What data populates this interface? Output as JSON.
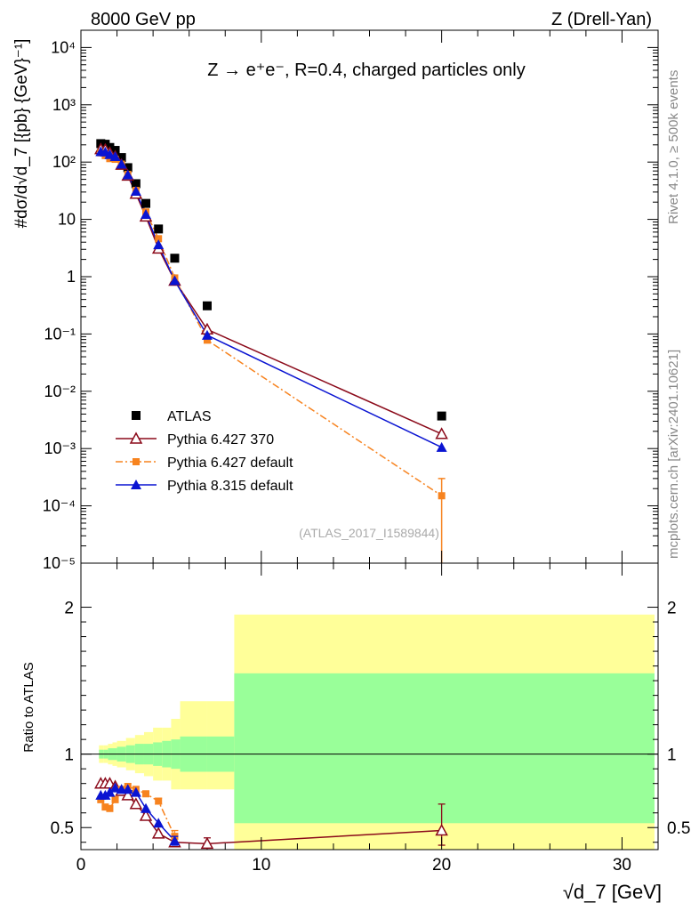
{
  "header": {
    "left_title": "8000 GeV pp",
    "right_title": "Z (Drell-Yan)"
  },
  "side_labels": {
    "rivet": "Rivet 4.1.0, ≥ 500k events",
    "mcplots": "mcplots.cern.ch [arXiv:2401.10621]"
  },
  "chart_data": [
    {
      "type": "scatter",
      "title": "Z → e⁺e⁻, R=0.4, charged particles only",
      "analysis_tag": "(ATLAS_2017_I1589844)",
      "ylabel": "#dσ/d√d_7 [{pb} {GeV}⁻¹]",
      "yscale": "log",
      "ylim": [
        1e-05,
        20000.0
      ],
      "xlim": [
        0,
        32
      ],
      "ytick_labels": [
        "10⁻⁵",
        "10⁻⁴",
        "10⁻³",
        "10⁻²",
        "10⁻¹",
        "1",
        "10",
        "10²",
        "10³",
        "10⁴"
      ],
      "legend_position": "bottom-left",
      "series": [
        {
          "name": "ATLAS",
          "color": "#000000",
          "marker": "square",
          "x": [
            1.1,
            1.35,
            1.6,
            1.9,
            2.25,
            2.6,
            3.05,
            3.6,
            4.3,
            5.2,
            7.0,
            20.0
          ],
          "y": [
            210,
            205,
            180,
            160,
            120,
            80,
            42,
            19,
            6.8,
            2.1,
            0.31,
            0.0037
          ]
        },
        {
          "name": "Pythia 6.427 370",
          "color": "#8b0a1a",
          "marker": "open-triangle",
          "line": "solid",
          "x": [
            1.1,
            1.35,
            1.6,
            1.9,
            2.25,
            2.6,
            3.05,
            3.6,
            4.3,
            5.2,
            7.0,
            20.0
          ],
          "y": [
            168,
            165,
            145,
            125,
            90,
            58,
            28,
            11.2,
            3.1,
            0.85,
            0.12,
            0.0018
          ]
        },
        {
          "name": "Pythia 6.427 default",
          "color": "#f7831f",
          "marker": "square-small",
          "line": "dashdot",
          "x": [
            1.1,
            1.35,
            1.6,
            1.9,
            2.25,
            2.6,
            3.05,
            3.6,
            4.3,
            5.2,
            7.0,
            20.0
          ],
          "y": [
            145,
            130,
            115,
            112,
            92,
            61,
            32,
            13.5,
            4.6,
            0.95,
            0.078,
            0.00015
          ]
        },
        {
          "name": "Pythia 8.315 default",
          "color": "#0a14d2",
          "marker": "filled-triangle",
          "line": "solid",
          "x": [
            1.1,
            1.35,
            1.6,
            1.9,
            2.25,
            2.6,
            3.05,
            3.6,
            4.3,
            5.2,
            7.0,
            20.0
          ],
          "y": [
            152,
            150,
            135,
            125,
            92,
            60,
            31,
            12.2,
            3.6,
            0.85,
            0.095,
            0.00105
          ]
        }
      ]
    },
    {
      "type": "scatter",
      "ylabel": "Ratio to ATLAS",
      "xlabel": "√d_7 [GeV]",
      "xlim": [
        0,
        32
      ],
      "ylim": [
        0.35,
        2.3
      ],
      "xtick_labels": [
        "0",
        "10",
        "20",
        "30"
      ],
      "ytick_labels": [
        "0.5",
        "1",
        "2"
      ],
      "reference_line": 1,
      "bands": {
        "edges": [
          1.0,
          1.25,
          1.5,
          1.75,
          2.0,
          2.5,
          3.0,
          3.5,
          4.0,
          4.5,
          5.0,
          5.5,
          7.0,
          8.5,
          31.8
        ],
        "inner_low": [
          0.97,
          0.97,
          0.96,
          0.96,
          0.95,
          0.94,
          0.93,
          0.93,
          0.92,
          0.91,
          0.9,
          0.88,
          0.88,
          0.53
        ],
        "inner_high": [
          1.03,
          1.03,
          1.04,
          1.04,
          1.05,
          1.06,
          1.07,
          1.07,
          1.08,
          1.09,
          1.1,
          1.12,
          1.12,
          1.55
        ],
        "outer_low": [
          0.94,
          0.94,
          0.93,
          0.92,
          0.91,
          0.89,
          0.87,
          0.85,
          0.82,
          0.82,
          0.76,
          0.76,
          0.76,
          0.35
        ],
        "outer_high": [
          1.06,
          1.06,
          1.07,
          1.08,
          1.09,
          1.11,
          1.13,
          1.15,
          1.18,
          1.18,
          1.24,
          1.36,
          1.36,
          1.95
        ],
        "inner_color": "#99ff99",
        "outer_color": "#ffff99"
      },
      "series": [
        {
          "name": "Pythia 6.427 370",
          "color": "#8b0a1a",
          "marker": "open-triangle",
          "line": "solid",
          "x": [
            1.1,
            1.35,
            1.6,
            1.9,
            2.25,
            2.6,
            3.05,
            3.6,
            4.3,
            5.2,
            7.0,
            20.0
          ],
          "y": [
            0.8,
            0.8,
            0.8,
            0.78,
            0.75,
            0.72,
            0.66,
            0.58,
            0.46,
            0.4,
            0.39,
            0.48
          ],
          "err_low": [
            0,
            0,
            0,
            0,
            0,
            0,
            0,
            0,
            0,
            0,
            0.04,
            0.1
          ],
          "err_high": [
            0,
            0,
            0,
            0,
            0,
            0,
            0,
            0,
            0,
            0,
            0.04,
            0.18
          ]
        },
        {
          "name": "Pythia 6.427 default",
          "color": "#f7831f",
          "marker": "square-small",
          "line": "dashdot",
          "x": [
            1.1,
            1.35,
            1.6,
            1.9,
            2.25,
            2.6,
            3.05,
            3.6,
            4.3,
            5.2
          ],
          "y": [
            0.69,
            0.64,
            0.63,
            0.69,
            0.76,
            0.78,
            0.76,
            0.73,
            0.68,
            0.44
          ],
          "err_low": [
            0,
            0,
            0,
            0,
            0,
            0,
            0,
            0,
            0.02,
            0.04
          ],
          "err_high": [
            0,
            0,
            0,
            0,
            0,
            0,
            0,
            0,
            0.02,
            0.04
          ]
        },
        {
          "name": "Pythia 8.315 default",
          "color": "#0a14d2",
          "marker": "filled-triangle",
          "line": "solid",
          "x": [
            1.1,
            1.35,
            1.6,
            1.9,
            2.25,
            2.6,
            3.05,
            3.6,
            4.3,
            5.2
          ],
          "y": [
            0.72,
            0.72,
            0.74,
            0.77,
            0.76,
            0.76,
            0.74,
            0.63,
            0.53,
            0.41
          ],
          "err_low": [
            0,
            0,
            0,
            0,
            0,
            0,
            0,
            0,
            0,
            0.03
          ],
          "err_high": [
            0,
            0,
            0,
            0,
            0,
            0,
            0,
            0,
            0,
            0.03
          ]
        }
      ]
    }
  ]
}
